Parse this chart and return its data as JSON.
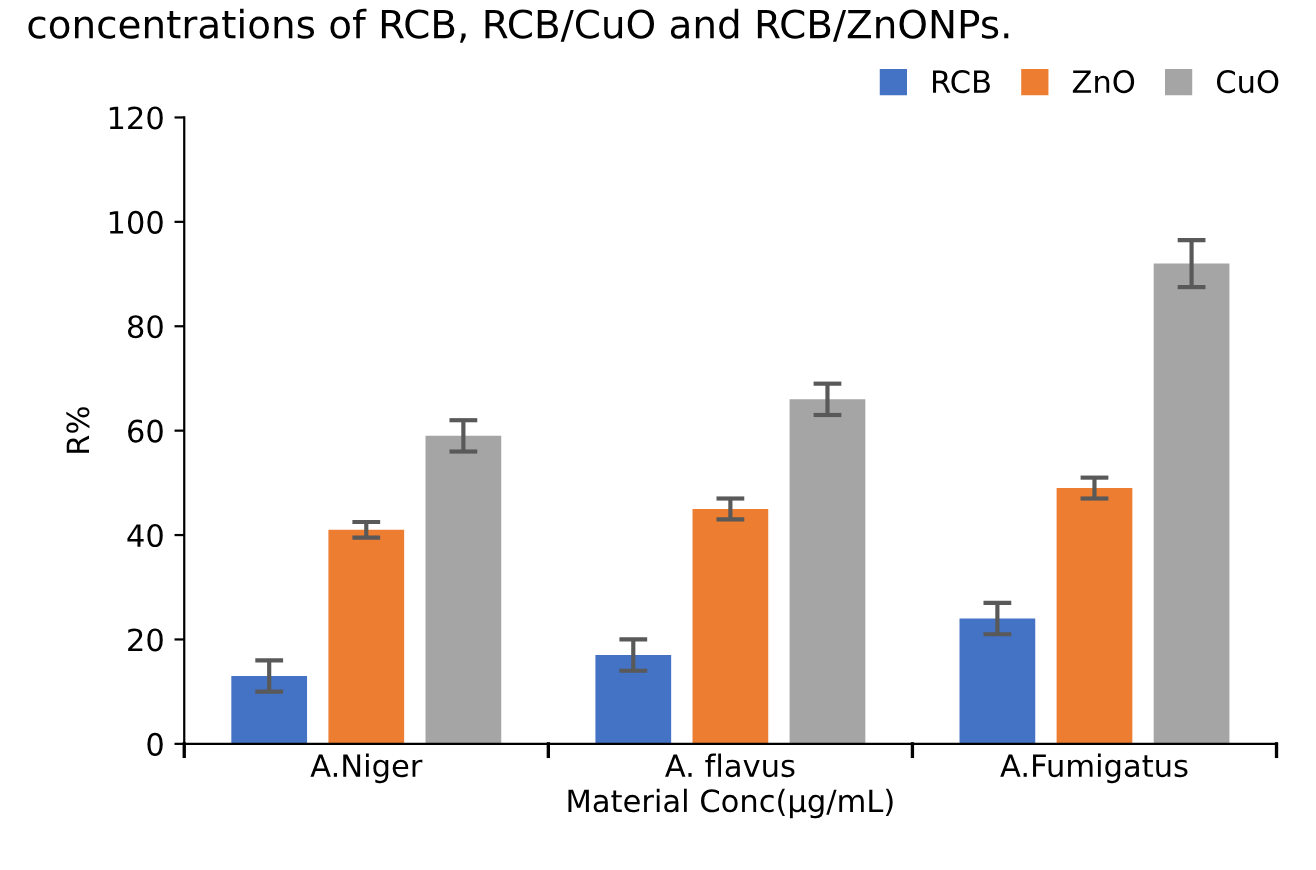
{
  "chart_data": {
    "type": "bar",
    "title": "concentrations of RCB, RCB/CuO and RCB/ZnONPs.",
    "xlabel": "Material Conc(μg/mL)",
    "ylabel": "R%",
    "categories": [
      "A.Niger",
      "A. flavus",
      "A.Fumigatus"
    ],
    "series": [
      {
        "name": "RCB",
        "color": "#4472c4",
        "values": [
          13,
          17,
          24
        ],
        "errors": [
          3,
          3,
          3
        ]
      },
      {
        "name": "ZnO",
        "color": "#ed7d31",
        "values": [
          41,
          45,
          49
        ],
        "errors": [
          1.5,
          2,
          2
        ]
      },
      {
        "name": "CuO",
        "color": "#a5a5a5",
        "values": [
          59,
          66,
          92
        ],
        "errors": [
          3,
          3,
          4.5
        ]
      }
    ],
    "ylim": [
      0,
      120
    ],
    "yticks": [
      0,
      20,
      40,
      60,
      80,
      100,
      120
    ],
    "grid": false,
    "legend": "top right"
  }
}
